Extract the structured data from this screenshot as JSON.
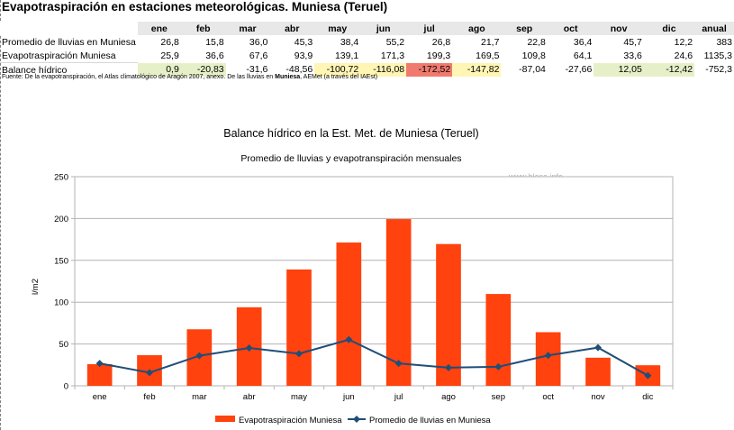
{
  "page_title": "Evapotraspiración en estaciones meteorológicas. Muniesa (Teruel)",
  "table": {
    "corner": "",
    "months": [
      "ene",
      "feb",
      "mar",
      "abr",
      "may",
      "jun",
      "jul",
      "ago",
      "sep",
      "oct",
      "nov",
      "dic",
      "anual"
    ],
    "rows": [
      {
        "label": "Promedio de lluvias en Muniesa",
        "values": [
          "26,8",
          "15,8",
          "36,0",
          "45,3",
          "38,4",
          "55,2",
          "26,8",
          "21,7",
          "22,8",
          "36,4",
          "45,7",
          "12,2",
          "383"
        ]
      },
      {
        "label": "Evapotraspiración Muniesa",
        "values": [
          "25,9",
          "36,6",
          "67,6",
          "93,9",
          "139,1",
          "171,3",
          "199,3",
          "169,5",
          "109,8",
          "64,1",
          "33,6",
          "24,6",
          "1135,3"
        ]
      },
      {
        "label": "Balance hídrico",
        "values": [
          "0,9",
          "-20,83",
          "-31,6",
          "-48,56",
          "-100,72",
          "-116,08",
          "-172,52",
          "-147,82",
          "-87,04",
          "-27,66",
          "12,05",
          "-12,42",
          "-752,3"
        ],
        "cell_colors": [
          "#e6f0c8",
          "#e6f0c8",
          "#ffffff",
          "#ffffff",
          "#fff5b4",
          "#fff5b4",
          "#f07a6e",
          "#fff5b4",
          "#ffffff",
          "#ffffff",
          "#e6f0c8",
          "#e6f0c8",
          "#ffffff"
        ]
      }
    ]
  },
  "source": {
    "prefix": "Fuente: De la evapotranspiración, el Atlas climatológico de Aragón 2007, anexo. De las lluvias en ",
    "bold": "Muniesa",
    "suffix": ", AEMet (a través del IAEst)"
  },
  "chart_data": {
    "type": "bar",
    "title": "Balance hídrico en la Est. Met. de Muniesa (Teruel)",
    "subtitle": "Promedio de lluvias y evapotranspiración mensuales",
    "watermark": "www.blesa.info",
    "ylabel": "l/m2",
    "xlabel": "",
    "ylim": [
      0,
      250
    ],
    "yticks": [
      0,
      50,
      100,
      150,
      200,
      250
    ],
    "categories": [
      "ene",
      "feb",
      "mar",
      "abr",
      "may",
      "jun",
      "jul",
      "ago",
      "sep",
      "oct",
      "nov",
      "dic"
    ],
    "series": [
      {
        "name": "Evapotraspiración Muniesa",
        "type": "bar",
        "color": "#ff420e",
        "values": [
          25.9,
          36.6,
          67.6,
          93.9,
          139.1,
          171.3,
          199.3,
          169.5,
          109.8,
          64.1,
          33.6,
          24.6
        ]
      },
      {
        "name": "Promedio de lluvias en Muniesa",
        "type": "line",
        "color": "#1f4e79",
        "values": [
          26.8,
          15.8,
          36.0,
          45.3,
          38.4,
          55.2,
          26.8,
          21.7,
          22.8,
          36.4,
          45.7,
          12.2
        ]
      }
    ],
    "grid": true,
    "legend_position": "bottom"
  }
}
